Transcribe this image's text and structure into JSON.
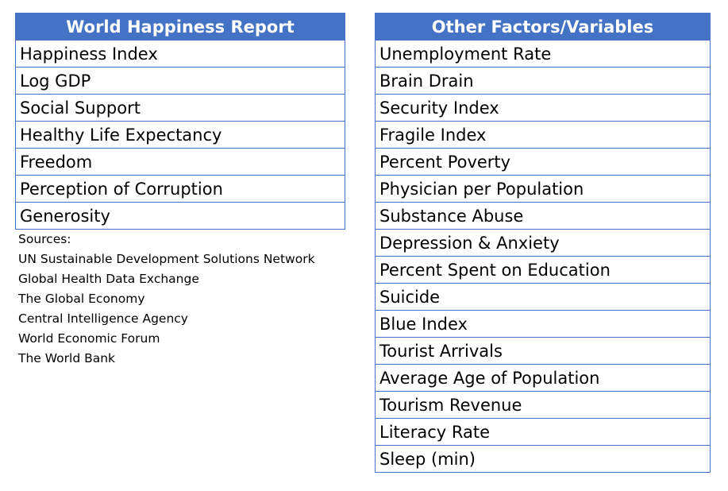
{
  "left_table": {
    "header": "World Happiness Report",
    "rows": [
      "Happiness Index",
      "Log GDP",
      "Social Support",
      "Healthy Life Expectancy",
      "Freedom",
      "Perception of Corruption",
      "Generosity"
    ]
  },
  "right_table": {
    "header": "Other Factors/Variables",
    "rows": [
      "Unemployment Rate",
      "Brain Drain",
      "Security Index",
      "Fragile Index",
      "Percent Poverty",
      "Physician per Population",
      "Substance Abuse",
      "Depression & Anxiety",
      "Percent Spent on Education",
      "Suicide",
      "Blue Index",
      "Tourist Arrivals",
      "Average Age of Population",
      "Tourism Revenue",
      "Literacy Rate",
      "Sleep (min)"
    ]
  },
  "sources": {
    "label": "Sources:",
    "items": [
      "UN Sustainable Development Solutions Network",
      "Global Health Data Exchange",
      "The Global Economy",
      "Central Intelligence Agency",
      "World Economic Forum",
      "The World Bank"
    ]
  }
}
